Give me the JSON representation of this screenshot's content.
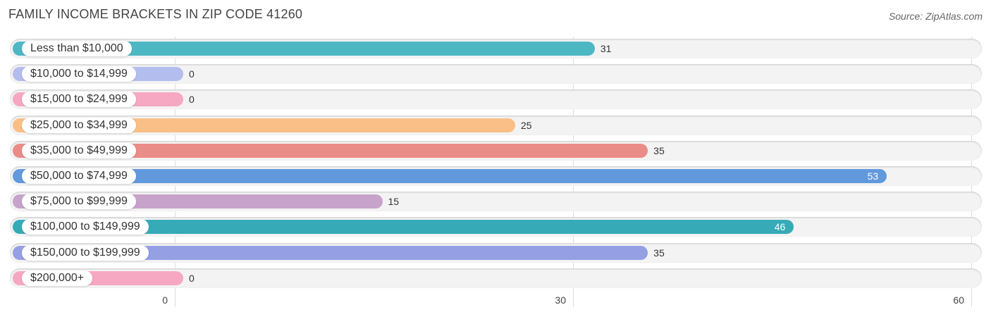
{
  "chart_data": {
    "type": "bar",
    "orientation": "horizontal",
    "title": "FAMILY INCOME BRACKETS IN ZIP CODE 41260",
    "source": "Source: ZipAtlas.com",
    "categories": [
      "Less than $10,000",
      "$10,000 to $14,999",
      "$15,000 to $24,999",
      "$25,000 to $34,999",
      "$35,000 to $49,999",
      "$50,000 to $74,999",
      "$75,000 to $99,999",
      "$100,000 to $149,999",
      "$150,000 to $199,999",
      "$200,000+"
    ],
    "values": [
      31,
      0,
      0,
      25,
      35,
      53,
      15,
      46,
      35,
      0
    ],
    "colors": [
      "#4db8c4",
      "#b3bdee",
      "#f6a8c2",
      "#f9bf86",
      "#ea8c88",
      "#6199dc",
      "#c7a3cb",
      "#37aab8",
      "#959fe3",
      "#f6a8c2"
    ],
    "xlim": [
      0,
      60
    ],
    "xticks": [
      "0",
      "30",
      "60"
    ],
    "grid": true
  }
}
